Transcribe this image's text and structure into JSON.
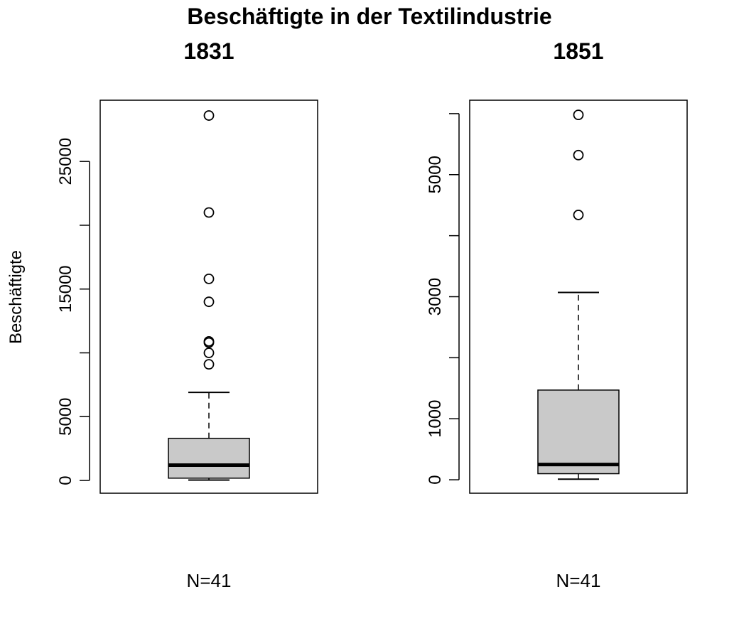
{
  "title": "Beschäftigte in der Textilindustrie",
  "ylabel": "Beschäftigte",
  "chart_data": [
    {
      "type": "boxplot",
      "title": "1831",
      "ylabel": "Beschäftigte",
      "ylim": [
        -1000,
        29800
      ],
      "yticks": [
        0,
        5000,
        10000,
        15000,
        20000,
        25000
      ],
      "ytick_labels": [
        "0",
        "5000",
        "",
        "15000",
        "",
        "25000"
      ],
      "whisker_low": 30,
      "q1": 180,
      "median": 1200,
      "q3": 3300,
      "whisker_high": 6900,
      "outliers": [
        28600,
        21000,
        15800,
        14000,
        10900,
        10800,
        10000,
        9100
      ],
      "n_label": "N=41"
    },
    {
      "type": "boxplot",
      "title": "1851",
      "ylabel": "",
      "ylim": [
        -220,
        6220
      ],
      "yticks": [
        0,
        1000,
        2000,
        3000,
        4000,
        5000,
        6000
      ],
      "ytick_labels": [
        "0",
        "1000",
        "",
        "3000",
        "",
        "5000",
        ""
      ],
      "whisker_low": 10,
      "q1": 100,
      "median": 250,
      "q3": 1470,
      "whisker_high": 3070,
      "outliers": [
        5980,
        5320,
        4340
      ],
      "n_label": "N=41"
    }
  ]
}
